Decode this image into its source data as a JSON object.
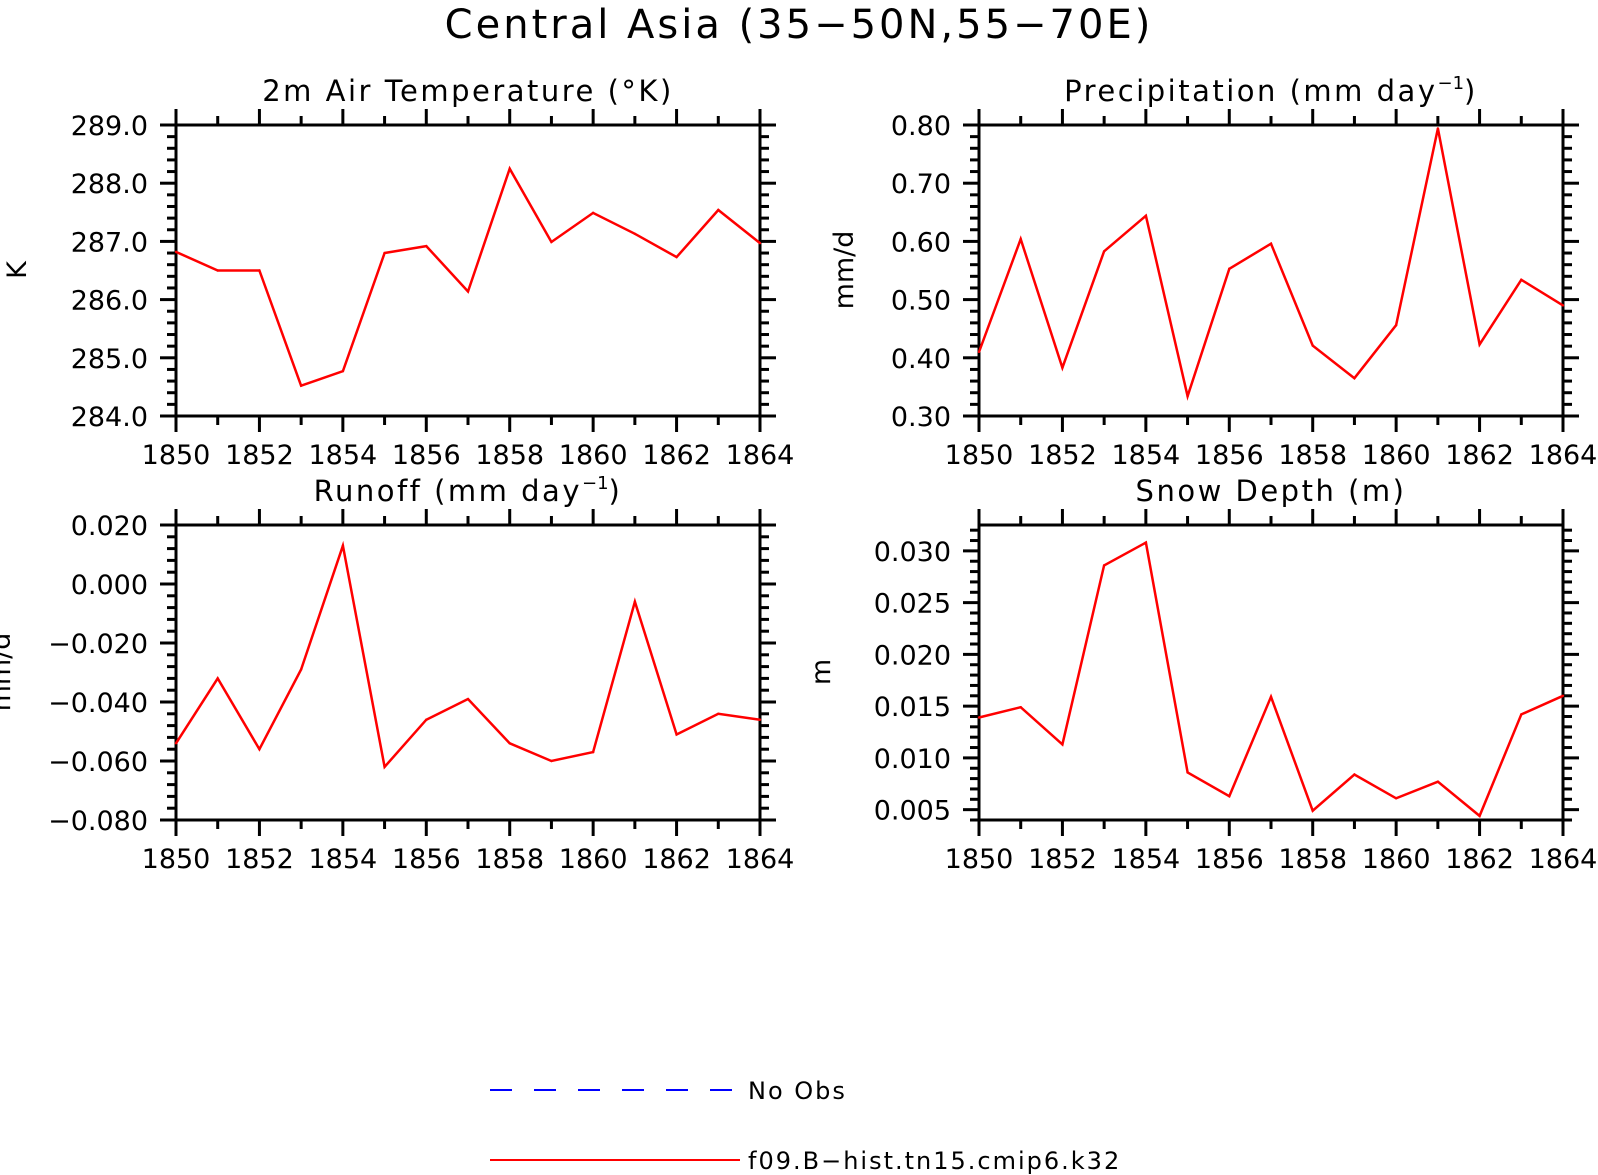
{
  "figure": {
    "title": "Central Asia (35−50N,55−70E)"
  },
  "legend": [
    {
      "label": "No Obs",
      "color": "#0000ff",
      "style": "dashed"
    },
    {
      "label": "f09.B−hist.tn15.cmip6.k32",
      "color": "#ff0000",
      "style": "solid"
    }
  ],
  "chart_data": [
    {
      "type": "line",
      "title": "2m Air Temperature (°K)",
      "ylabel": "K",
      "xlim": [
        1850,
        1864
      ],
      "ylim": [
        284.0,
        289.0
      ],
      "xticks": [
        "1850",
        "1852",
        "1854",
        "1856",
        "1858",
        "1860",
        "1862",
        "1864"
      ],
      "yticks": [
        "284.0",
        "285.0",
        "286.0",
        "287.0",
        "288.0",
        "289.0"
      ],
      "x": [
        1850,
        1851,
        1852,
        1853,
        1854,
        1855,
        1856,
        1857,
        1858,
        1859,
        1860,
        1861,
        1862,
        1863,
        1864
      ],
      "series": [
        {
          "name": "f09.B−hist.tn15.cmip6.k32",
          "color": "#ff0000",
          "values": [
            286.82,
            286.5,
            286.5,
            284.52,
            284.77,
            286.8,
            286.92,
            286.14,
            288.25,
            286.99,
            287.49,
            287.13,
            286.73,
            287.54,
            286.97
          ]
        }
      ]
    },
    {
      "type": "line",
      "title": "Precipitation (mm day",
      "title_sup": "−1",
      "title_end": ")",
      "ylabel": "mm/d",
      "xlim": [
        1850,
        1864
      ],
      "ylim": [
        0.3,
        0.8
      ],
      "xticks": [
        "1850",
        "1852",
        "1854",
        "1856",
        "1858",
        "1860",
        "1862",
        "1864"
      ],
      "yticks": [
        "0.30",
        "0.40",
        "0.50",
        "0.60",
        "0.70",
        "0.80"
      ],
      "x": [
        1850,
        1851,
        1852,
        1853,
        1854,
        1855,
        1856,
        1857,
        1858,
        1859,
        1860,
        1861,
        1862,
        1863,
        1864
      ],
      "series": [
        {
          "name": "f09.B−hist.tn15.cmip6.k32",
          "color": "#ff0000",
          "values": [
            0.41,
            0.604,
            0.383,
            0.583,
            0.644,
            0.334,
            0.553,
            0.596,
            0.421,
            0.365,
            0.456,
            0.794,
            0.423,
            0.534,
            0.49
          ]
        }
      ]
    },
    {
      "type": "line",
      "title": "Runoff (mm day",
      "title_sup": "−1",
      "title_end": ")",
      "ylabel": "mm/d",
      "xlim": [
        1850,
        1864
      ],
      "ylim": [
        -0.08,
        0.02
      ],
      "xticks": [
        "1850",
        "1852",
        "1854",
        "1856",
        "1858",
        "1860",
        "1862",
        "1864"
      ],
      "yticks": [
        "−0.080",
        "−0.060",
        "−0.040",
        "−0.020",
        "0.000",
        "0.020"
      ],
      "x": [
        1850,
        1851,
        1852,
        1853,
        1854,
        1855,
        1856,
        1857,
        1858,
        1859,
        1860,
        1861,
        1862,
        1863,
        1864
      ],
      "series": [
        {
          "name": "f09.B−hist.tn15.cmip6.k32",
          "color": "#ff0000",
          "values": [
            -0.054,
            -0.032,
            -0.056,
            -0.029,
            0.013,
            -0.062,
            -0.046,
            -0.039,
            -0.054,
            -0.06,
            -0.057,
            -0.006,
            -0.051,
            -0.044,
            -0.046
          ]
        }
      ]
    },
    {
      "type": "line",
      "title": "Snow Depth (m)",
      "ylabel": "m",
      "xlim": [
        1850,
        1864
      ],
      "ylim": [
        0.004,
        0.0325
      ],
      "xticks": [
        "1850",
        "1852",
        "1854",
        "1856",
        "1858",
        "1860",
        "1862",
        "1864"
      ],
      "yticks": [
        "0.005",
        "0.010",
        "0.015",
        "0.020",
        "0.025",
        "0.030"
      ],
      "x": [
        1850,
        1851,
        1852,
        1853,
        1854,
        1855,
        1856,
        1857,
        1858,
        1859,
        1860,
        1861,
        1862,
        1863,
        1864
      ],
      "series": [
        {
          "name": "f09.B−hist.tn15.cmip6.k32",
          "color": "#ff0000",
          "values": [
            0.0139,
            0.0149,
            0.0113,
            0.0286,
            0.0308,
            0.0086,
            0.0063,
            0.0159,
            0.0049,
            0.0084,
            0.0061,
            0.0077,
            0.0044,
            0.0142,
            0.016
          ]
        }
      ]
    }
  ]
}
